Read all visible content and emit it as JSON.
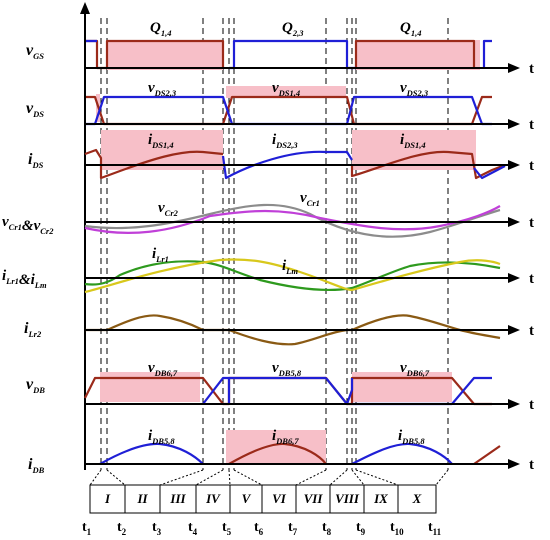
{
  "rows": [
    {
      "id": "vgs",
      "base": "v",
      "sub": "GS"
    },
    {
      "id": "vds",
      "base": "v",
      "sub": "DS"
    },
    {
      "id": "ids",
      "base": "i",
      "sub": "DS"
    },
    {
      "id": "vcr",
      "parts": [
        [
          "v",
          "Cr1"
        ],
        [
          "&",
          ""
        ],
        [
          "v",
          "Cr2"
        ]
      ]
    },
    {
      "id": "ilr",
      "parts": [
        [
          "i",
          "Lr1"
        ],
        [
          "&",
          ""
        ],
        [
          "i",
          "Lm"
        ]
      ]
    },
    {
      "id": "ilr2",
      "base": "i",
      "sub": "Lr2"
    },
    {
      "id": "vdb",
      "base": "v",
      "sub": "DB"
    },
    {
      "id": "idb",
      "base": "i",
      "sub": "DB"
    }
  ],
  "axis_label": "t",
  "annotations": [
    {
      "id": "q14a",
      "base": "Q",
      "sub": "1,4"
    },
    {
      "id": "q23",
      "base": "Q",
      "sub": "2,3"
    },
    {
      "id": "q14b",
      "base": "Q",
      "sub": "1,4"
    },
    {
      "id": "vds23a",
      "base": "v",
      "sub": "DS2,3"
    },
    {
      "id": "vds14",
      "base": "v",
      "sub": "DS1,4"
    },
    {
      "id": "vds23b",
      "base": "v",
      "sub": "DS2,3"
    },
    {
      "id": "ids14a",
      "base": "i",
      "sub": "DS1,4"
    },
    {
      "id": "ids23",
      "base": "i",
      "sub": "DS2,3"
    },
    {
      "id": "ids14b",
      "base": "i",
      "sub": "DS1,4"
    },
    {
      "id": "vcr2",
      "base": "v",
      "sub": "Cr2"
    },
    {
      "id": "vcr1",
      "base": "v",
      "sub": "Cr1"
    },
    {
      "id": "ilr1",
      "base": "i",
      "sub": "Lr1"
    },
    {
      "id": "ilm",
      "base": "i",
      "sub": "Lm"
    },
    {
      "id": "vdb67a",
      "base": "v",
      "sub": "DB6,7"
    },
    {
      "id": "vdb58",
      "base": "v",
      "sub": "DB5,8"
    },
    {
      "id": "vdb67b",
      "base": "v",
      "sub": "DB6,7"
    },
    {
      "id": "idb58a",
      "base": "i",
      "sub": "DB5,8"
    },
    {
      "id": "idb67",
      "base": "i",
      "sub": "DB6,7"
    },
    {
      "id": "idb58b",
      "base": "i",
      "sub": "DB5,8"
    }
  ],
  "regions": [
    "I",
    "II",
    "III",
    "IV",
    "V",
    "VI",
    "VII",
    "VIII",
    "IX",
    "X"
  ],
  "ticks": [
    {
      "base": "t",
      "sub": "1"
    },
    {
      "base": "t",
      "sub": "2"
    },
    {
      "base": "t",
      "sub": "3"
    },
    {
      "base": "t",
      "sub": "4"
    },
    {
      "base": "t",
      "sub": "5"
    },
    {
      "base": "t",
      "sub": "6"
    },
    {
      "base": "t",
      "sub": "7"
    },
    {
      "base": "t",
      "sub": "8"
    },
    {
      "base": "t",
      "sub": "9"
    },
    {
      "base": "t",
      "sub": "10"
    },
    {
      "base": "t",
      "sub": "11"
    }
  ],
  "colors": {
    "blue": "#1f1fd6",
    "brown": "#9b2a1a",
    "highlight": "#f7bfc8",
    "gray": "#8c8c8c",
    "violet": "#c040d8",
    "green": "#2e9a1e",
    "yellow": "#d8c81c",
    "olive": "#8a5a14"
  }
}
